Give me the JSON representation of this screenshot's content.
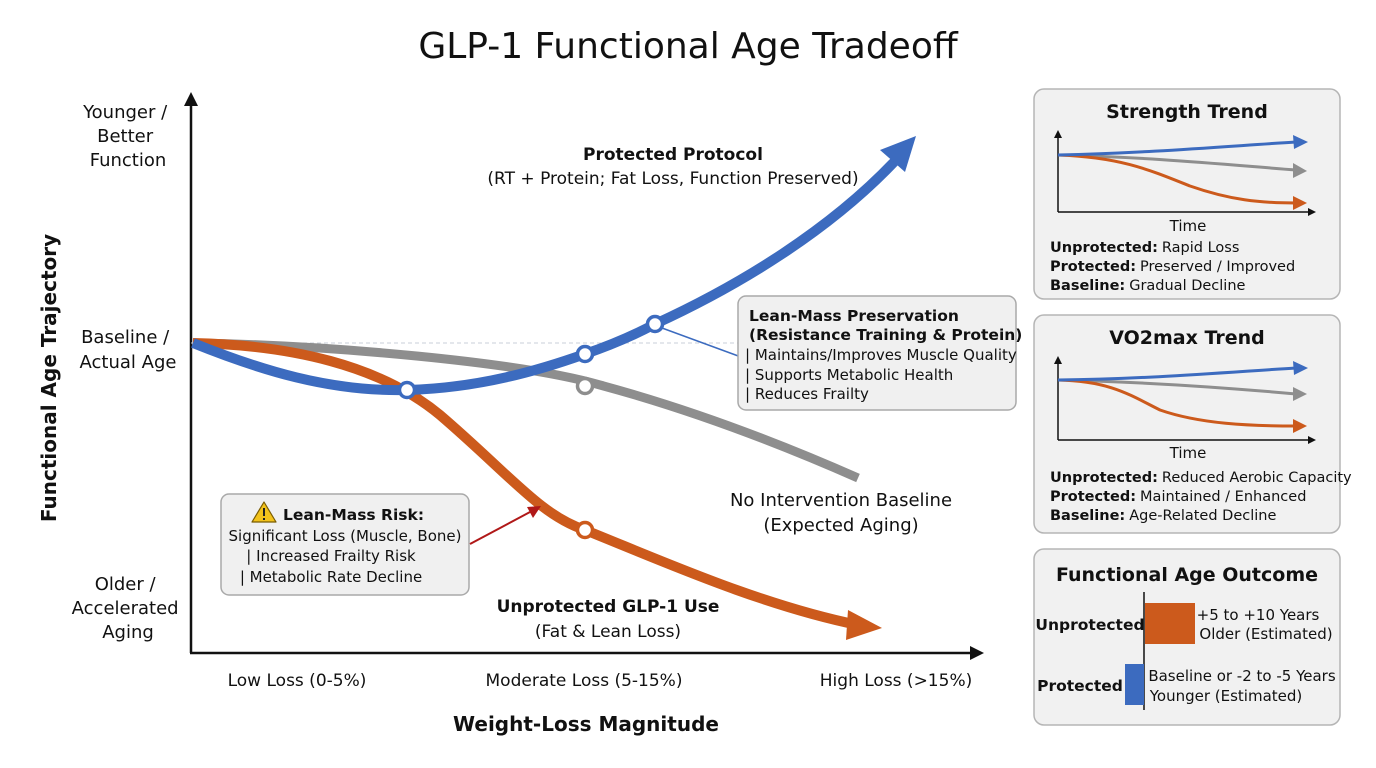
{
  "title": "GLP-1 Functional Age Tradeoff",
  "colors": {
    "protected": "#3c6bbf",
    "unprotected": "#cc5a1c",
    "baseline": "#8e8e8e",
    "arrow_red": "#b01818",
    "axis": "#111111"
  },
  "chart_data": [
    {
      "type": "line",
      "title": "GLP-1 Functional Age Tradeoff",
      "xlabel": "Weight-Loss Magnitude",
      "ylabel": "Functional Age Trajectory",
      "x_categories": [
        "Low Loss (0-5%)",
        "Moderate Loss (5-15%)",
        "High Loss (>15%)"
      ],
      "y_categories": [
        [
          "Younger /",
          "Better",
          "Function"
        ],
        [
          "Baseline /",
          "Actual Age"
        ],
        [
          "Older /",
          "Accelerated",
          "Aging"
        ]
      ],
      "series": [
        {
          "name": "Protected Protocol",
          "subtitle": "(RT + Protein; Fat Loss, Function Preserved)",
          "color": "#3c6bbf",
          "markers": [
            {
              "x": 1.05,
              "y": -0.46
            },
            {
              "x": 2.0,
              "y": 0.12
            },
            {
              "x": 2.4,
              "y": 0.2
            }
          ]
        },
        {
          "name": "No Intervention Baseline",
          "subtitle": "(Expected Aging)",
          "color": "#8e8e8e",
          "markers": [
            {
              "x": 2.0,
              "y": -0.44
            }
          ]
        },
        {
          "name": "Unprotected GLP-1 Use",
          "subtitle": "(Fat & Lean Loss)",
          "color": "#cc5a1c",
          "markers": [
            {
              "x": 2.0,
              "y": -1.87
            }
          ]
        }
      ],
      "reference_line": "Baseline / Actual Age"
    }
  ],
  "callouts": {
    "preservation": {
      "title_lines": [
        "Lean-Mass Preservation",
        "(Resistance Training & Protein)"
      ],
      "items": [
        "| Maintains/Improves Muscle Quality",
        "| Supports Metabolic Health",
        "| Reduces Frailty"
      ]
    },
    "risk": {
      "title": "Lean-Mass Risk:",
      "icon": "warning-triangle-icon",
      "items": [
        "Significant Loss (Muscle, Bone)",
        "| Increased Frailty Risk",
        "| Metabolic Rate Decline"
      ]
    }
  },
  "panels": {
    "strength": {
      "title": "Strength Trend",
      "xlabel": "Time",
      "legend": [
        {
          "key": "Unprotected:",
          "value": "Rapid Loss"
        },
        {
          "key": "Protected:",
          "value": "Preserved / Improved"
        },
        {
          "key": "Baseline:",
          "value": "Gradual Decline"
        }
      ]
    },
    "vo2max": {
      "title": "VO2max Trend",
      "xlabel": "Time",
      "legend": [
        {
          "key": "Unprotected:",
          "value": "Reduced Aerobic Capacity"
        },
        {
          "key": "Protected:",
          "value": "Maintained / Enhanced"
        },
        {
          "key": "Baseline:",
          "value": "Age-Related Decline"
        }
      ]
    },
    "outcome": {
      "title": "Functional Age Outcome",
      "rows": [
        {
          "label": "Unprotected",
          "lines": [
            "+5 to +10 Years",
            "Older (Estimated)"
          ],
          "color": "#cc5a1c"
        },
        {
          "label": "Protected",
          "lines": [
            "Baseline or -2 to -5 Years",
            "Younger (Estimated)"
          ],
          "color": "#3c6bbf"
        }
      ]
    }
  }
}
